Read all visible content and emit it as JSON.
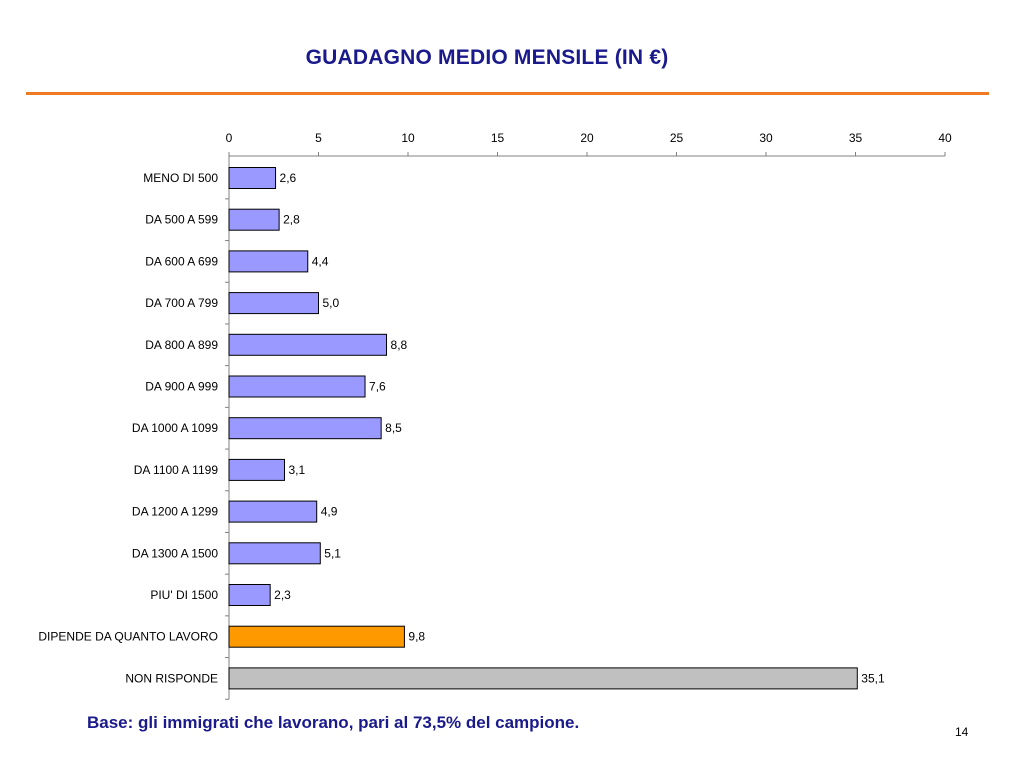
{
  "slide": {
    "title": "GUADAGNO MEDIO MENSILE (IN €)",
    "footnote": "Base: gli immigrati che lavorano, pari al 73,5% del campione.",
    "page_number": "14"
  },
  "colors": {
    "title": "#1a1a8c",
    "rule": "#f07a22",
    "bar_default": "#9999ff",
    "bar_highlight": "#ff9900",
    "bar_muted": "#c0c0c0"
  },
  "chart_data": {
    "type": "bar",
    "orientation": "horizontal",
    "x_axis_position": "top",
    "grid": false,
    "xlim": [
      0,
      40
    ],
    "xticks": [
      0,
      5,
      10,
      15,
      20,
      25,
      30,
      35,
      40
    ],
    "categories": [
      "MENO DI 500",
      "DA 500 A 599",
      "DA 600 A 699",
      "DA 700 A 799",
      "DA 800 A 899",
      "DA 900 A 999",
      "DA 1000 A 1099",
      "DA 1100 A 1199",
      "DA 1200 A 1299",
      "DA 1300 A 1500",
      "PIU' DI 1500",
      "DIPENDE DA QUANTO LAVORO",
      "NON RISPONDE"
    ],
    "values": [
      2.6,
      2.8,
      4.4,
      5.0,
      8.8,
      7.6,
      8.5,
      3.1,
      4.9,
      5.1,
      2.3,
      9.8,
      35.1
    ],
    "data_labels": [
      "2,6",
      "2,8",
      "4,4",
      "5,0",
      "8,8",
      "7,6",
      "8,5",
      "3,1",
      "4,9",
      "5,1",
      "2,3",
      "9,8",
      "35,1"
    ],
    "bar_color_keys": [
      "bar_default",
      "bar_default",
      "bar_default",
      "bar_default",
      "bar_default",
      "bar_default",
      "bar_default",
      "bar_default",
      "bar_default",
      "bar_default",
      "bar_default",
      "bar_highlight",
      "bar_muted"
    ]
  }
}
